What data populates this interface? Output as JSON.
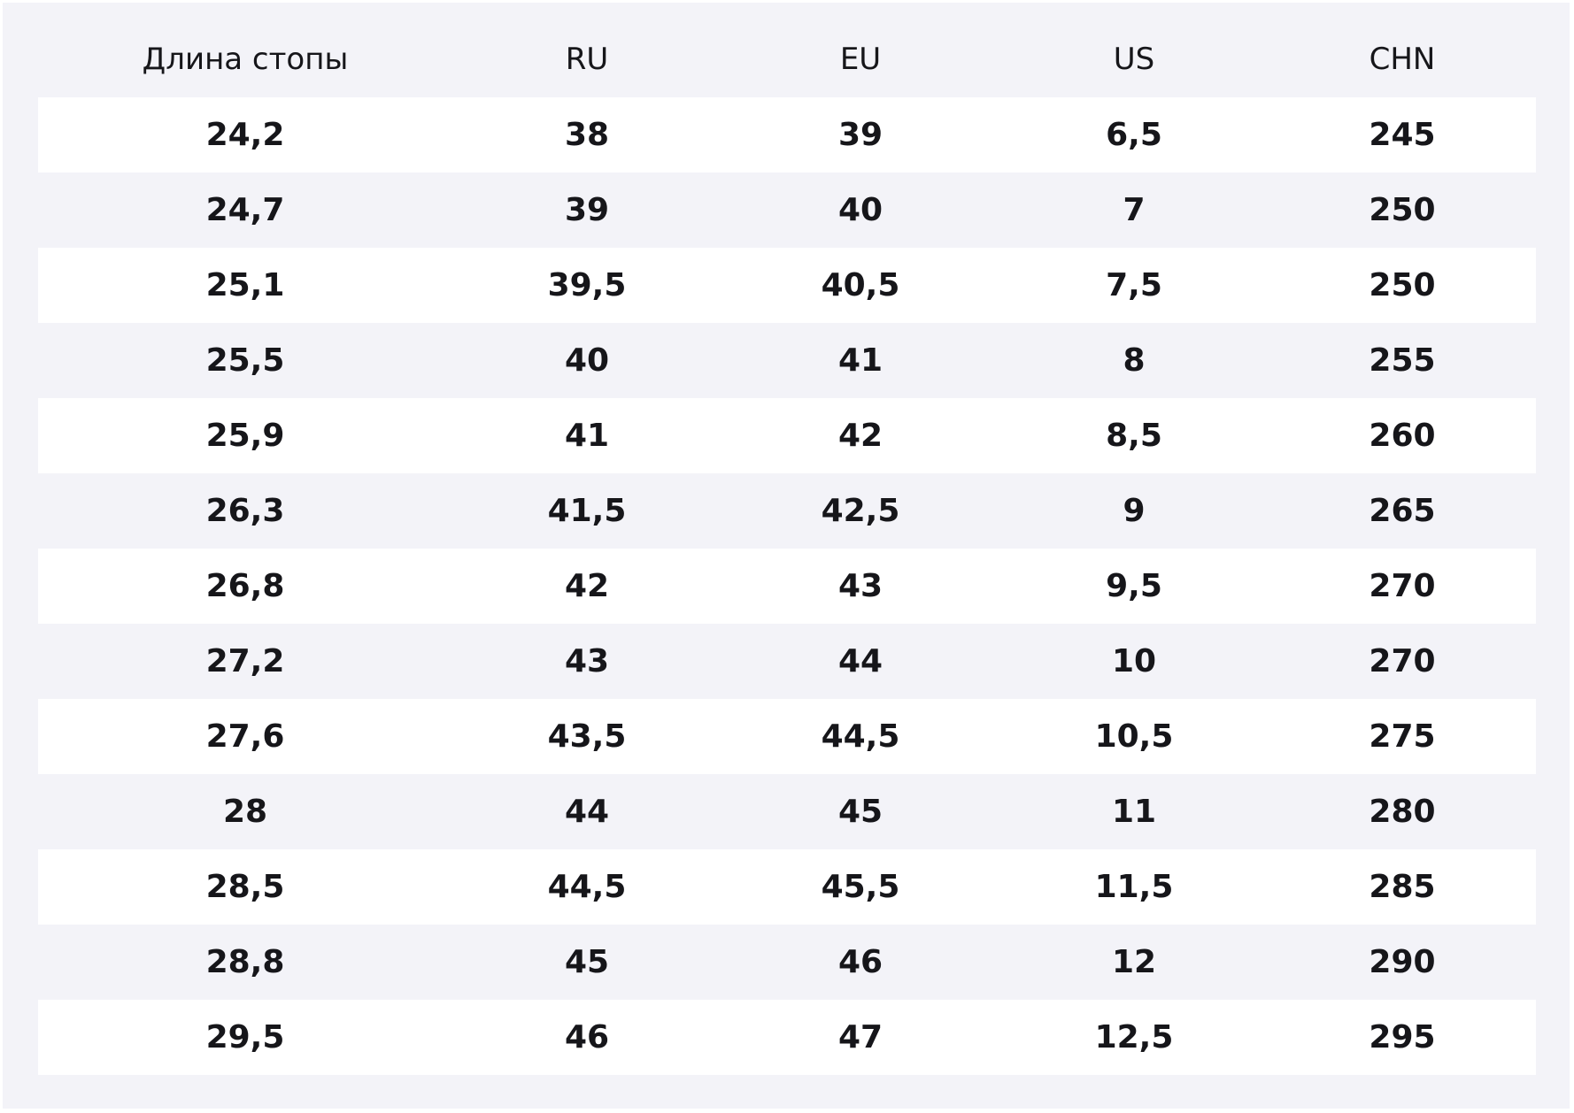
{
  "table": {
    "header": [
      "Длина стопы",
      "RU",
      "EU",
      "US",
      "CHN"
    ],
    "rows": [
      [
        "24,2",
        "38",
        "39",
        "6,5",
        "245"
      ],
      [
        "24,7",
        "39",
        "40",
        "7",
        "250"
      ],
      [
        "25,1",
        "39,5",
        "40,5",
        "7,5",
        "250"
      ],
      [
        "25,5",
        "40",
        "41",
        "8",
        "255"
      ],
      [
        "25,9",
        "41",
        "42",
        "8,5",
        "260"
      ],
      [
        "26,3",
        "41,5",
        "42,5",
        "9",
        "265"
      ],
      [
        "26,8",
        "42",
        "43",
        "9,5",
        "270"
      ],
      [
        "27,2",
        "43",
        "44",
        "10",
        "270"
      ],
      [
        "27,6",
        "43,5",
        "44,5",
        "10,5",
        "275"
      ],
      [
        "28",
        "44",
        "45",
        "11",
        "280"
      ],
      [
        "28,5",
        "44,5",
        "45,5",
        "11,5",
        "285"
      ],
      [
        "28,8",
        "45",
        "46",
        "12",
        "290"
      ],
      [
        "29,5",
        "46",
        "47",
        "12,5",
        "295"
      ]
    ]
  }
}
